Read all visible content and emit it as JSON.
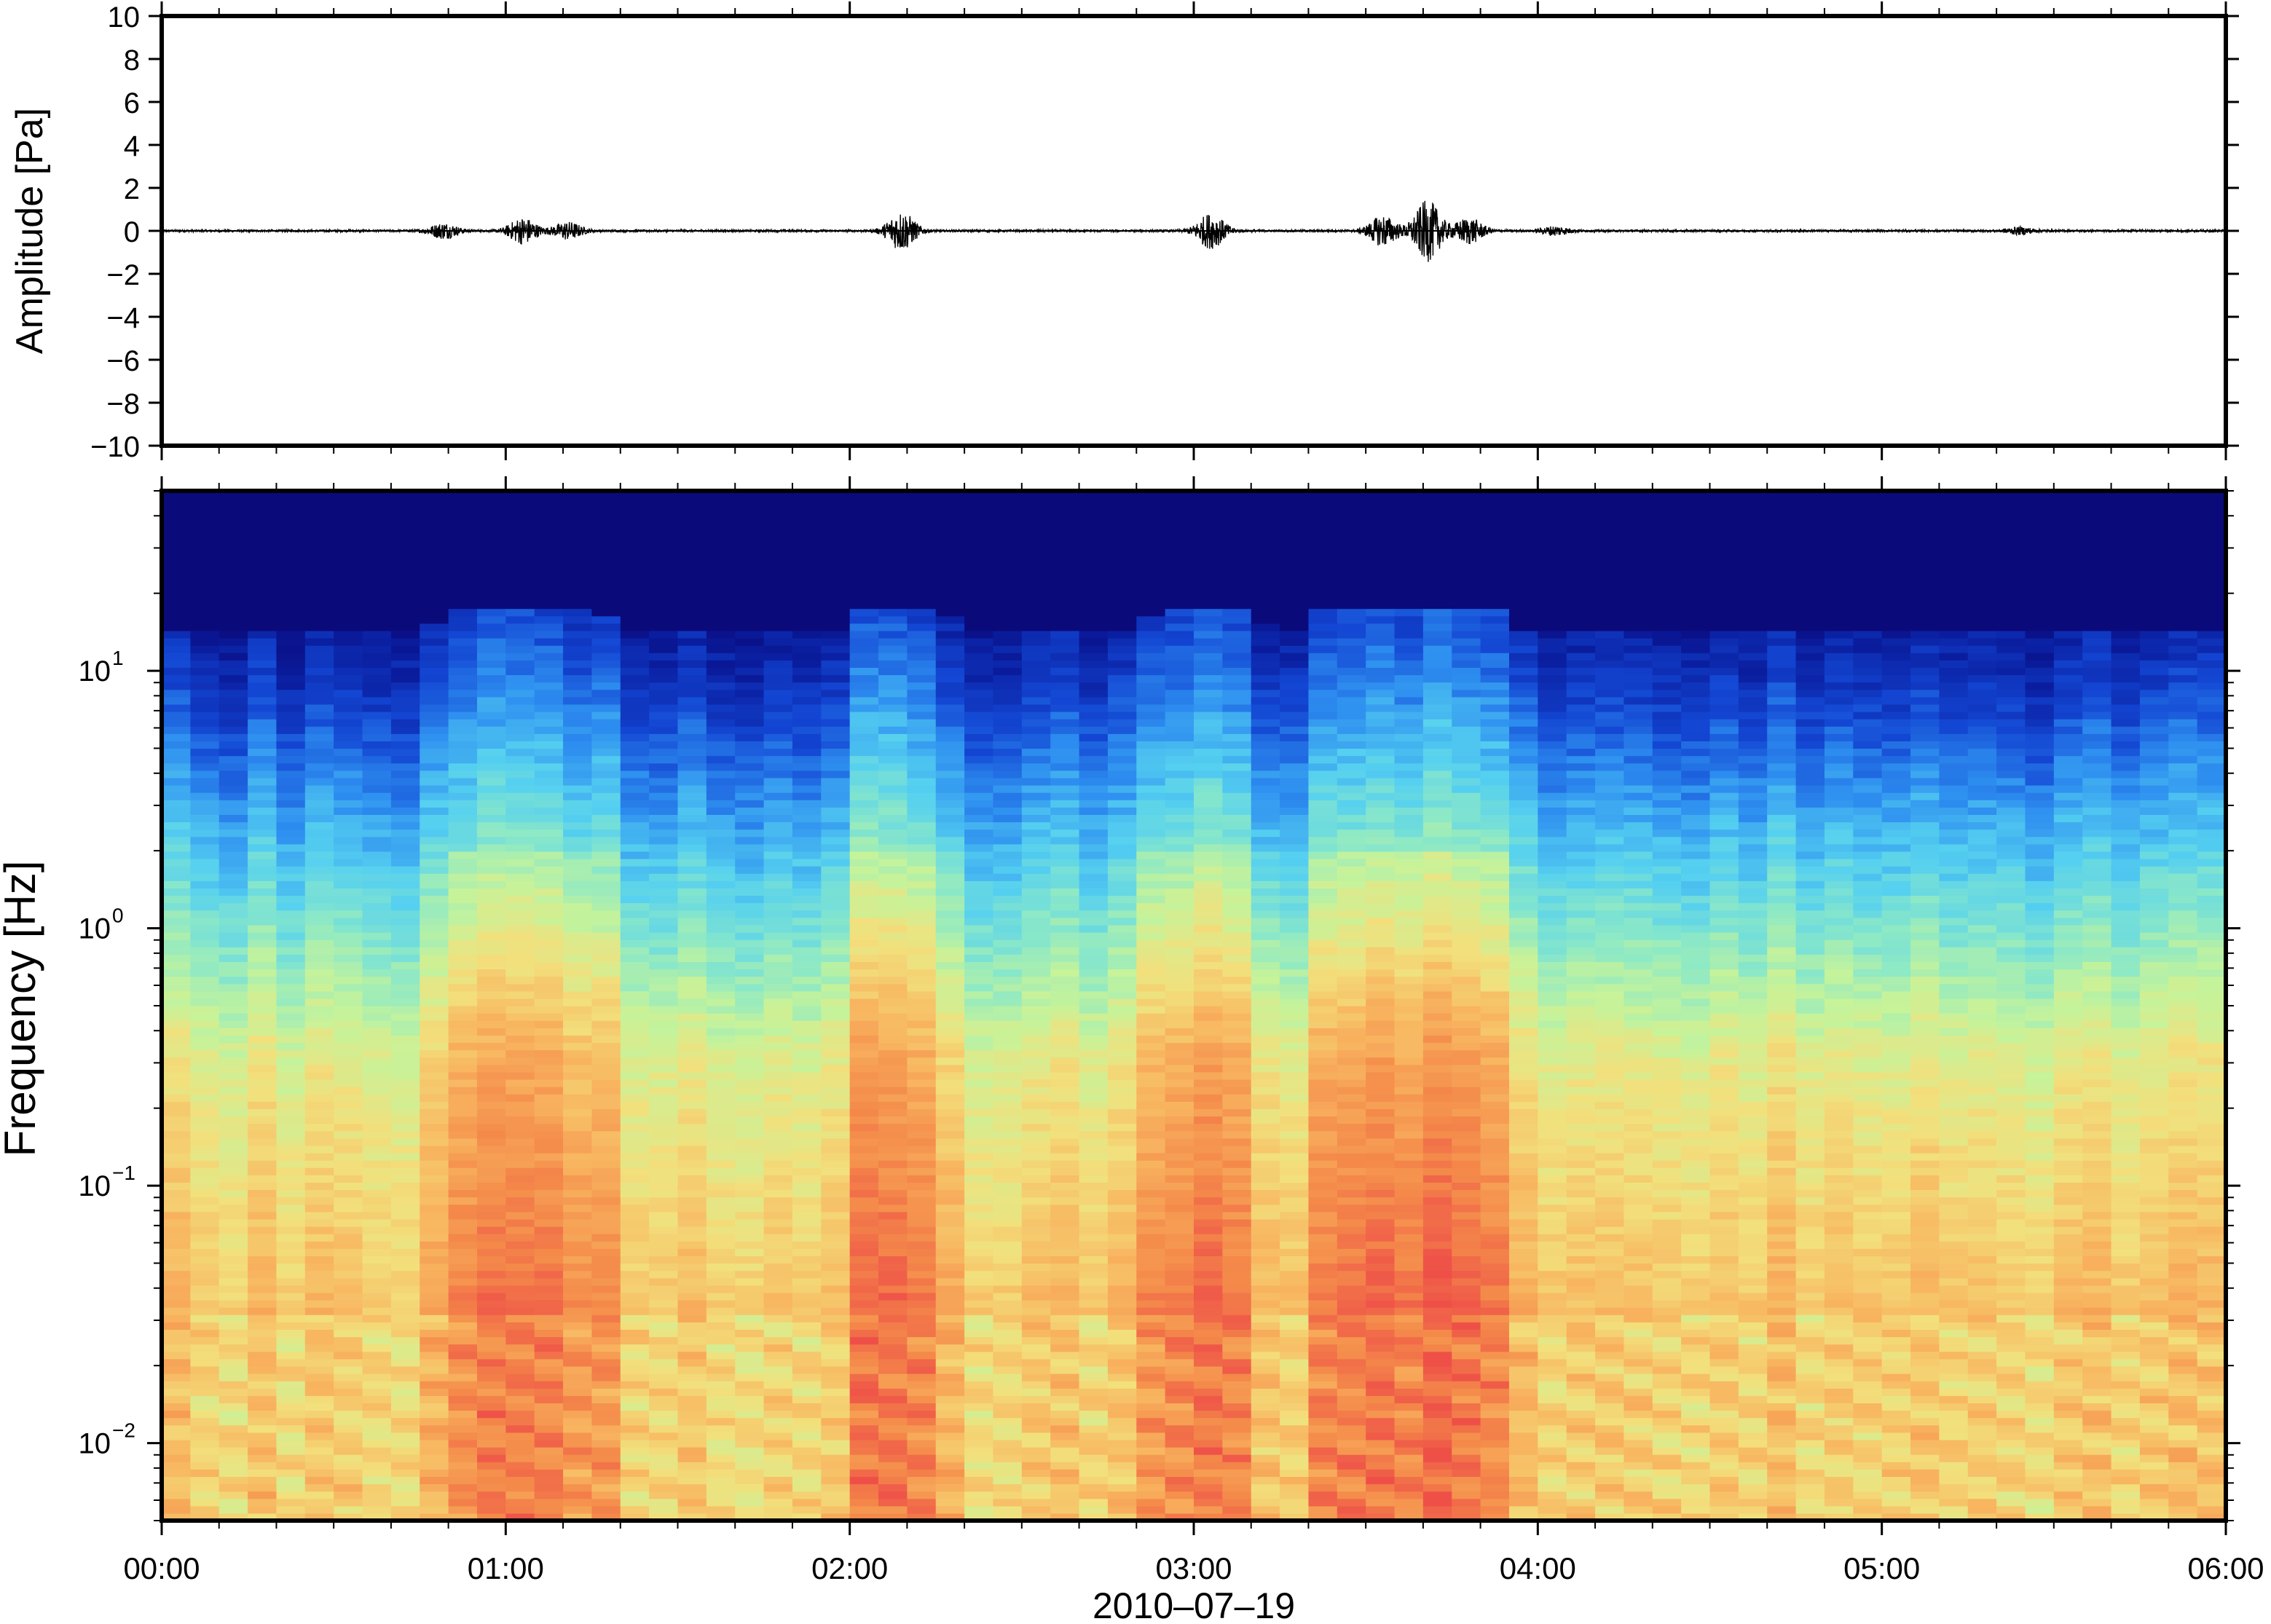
{
  "chart_data": [
    {
      "type": "line",
      "series_kind": "waveform",
      "ylabel": "Amplitude [Pa]",
      "ylim": [
        -10,
        10
      ],
      "yticks": [
        10,
        8,
        6,
        4,
        2,
        0,
        -2,
        -4,
        -6,
        -8,
        -10
      ],
      "ytick_labels": [
        "10",
        "8",
        "6",
        "4",
        "2",
        "0",
        "−2",
        "−4",
        "−6",
        "−8",
        "−10"
      ],
      "xlim_hours": [
        0,
        6
      ],
      "bursts": [
        {
          "t_hours": 0.82,
          "peak_pa": 0.35
        },
        {
          "t_hours": 1.05,
          "peak_pa": 0.6
        },
        {
          "t_hours": 1.18,
          "peak_pa": 0.4
        },
        {
          "t_hours": 2.15,
          "peak_pa": 0.9
        },
        {
          "t_hours": 3.05,
          "peak_pa": 0.8
        },
        {
          "t_hours": 3.55,
          "peak_pa": 0.7
        },
        {
          "t_hours": 3.68,
          "peak_pa": 1.4
        },
        {
          "t_hours": 3.8,
          "peak_pa": 0.6
        },
        {
          "t_hours": 4.05,
          "peak_pa": 0.2
        },
        {
          "t_hours": 5.4,
          "peak_pa": 0.15
        }
      ],
      "background_noise_pa": 0.05
    },
    {
      "type": "heatmap",
      "ylabel": "Frequency [Hz]",
      "yscale": "log",
      "ylim": [
        0.005,
        50
      ],
      "yticks": [
        0.01,
        0.1,
        1,
        10
      ],
      "ytick_labels": [
        {
          "base": "10",
          "exp": "−2"
        },
        {
          "base": "10",
          "exp": "−1"
        },
        {
          "base": "10",
          "exp": "0"
        },
        {
          "base": "10",
          "exp": "1"
        }
      ],
      "xlabel": "2010–07–19",
      "xlim_hours": [
        0,
        6
      ],
      "xticks": [
        "00:00",
        "01:00",
        "02:00",
        "03:00",
        "04:00",
        "05:00",
        "06:00"
      ],
      "colormap": [
        "#0b0572",
        "#0a1d9e",
        "#1346d3",
        "#2e8ff0",
        "#55d0f0",
        "#8ae8c8",
        "#c6f39a",
        "#f2e07c",
        "#f8b560",
        "#f48a4a",
        "#ee5048"
      ],
      "active_periods_hours": [
        {
          "t_start": 0.85,
          "t_end": 1.25,
          "strength": 0.8
        },
        {
          "t_start": 2.05,
          "t_end": 2.25,
          "strength": 0.9
        },
        {
          "t_start": 2.9,
          "t_end": 3.15,
          "strength": 0.85
        },
        {
          "t_start": 3.4,
          "t_end": 3.85,
          "strength": 1.0
        }
      ]
    }
  ]
}
